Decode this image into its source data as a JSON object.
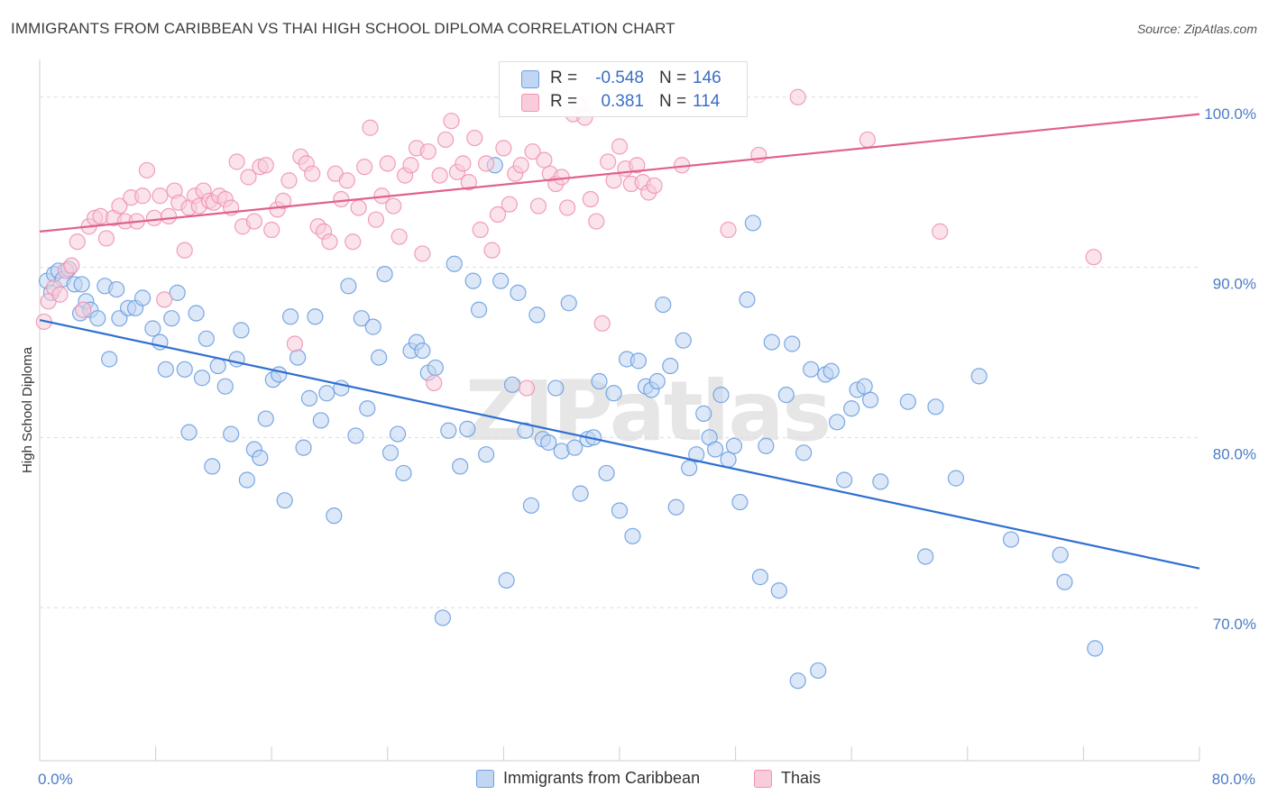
{
  "title": "IMMIGRANTS FROM CARIBBEAN VS THAI HIGH SCHOOL DIPLOMA CORRELATION CHART",
  "source": "Source: ZipAtlas.com",
  "watermark": "ZIPatlas",
  "colors": {
    "blue": "#6c9fe0",
    "blue_fill": "#c0d6f3",
    "blue_line": "#2f6fd0",
    "pink": "#ef93b1",
    "pink_fill": "#f8ccda",
    "pink_line": "#e06090",
    "tick_text": "#4a7cc7",
    "grid": "#dddddd"
  },
  "legend_top": [
    {
      "r_label": "R =",
      "r_value": "-0.548",
      "n_label": "N =",
      "n_value": "146",
      "color": "blue"
    },
    {
      "r_label": "R =",
      "r_value": "0.381",
      "n_label": "N =",
      "n_value": "114",
      "color": "pink"
    }
  ],
  "legend_bottom": [
    {
      "label": "Immigrants from Caribbean",
      "color": "blue"
    },
    {
      "label": "Thais",
      "color": "pink"
    }
  ],
  "chart_data": {
    "type": "scatter",
    "title": "IMMIGRANTS FROM CARIBBEAN VS THAI HIGH SCHOOL DIPLOMA CORRELATION CHART",
    "xlabel": "",
    "ylabel": "High School Diploma",
    "xlim": [
      0,
      80
    ],
    "ylim": [
      61,
      102
    ],
    "x_tick_labels": [
      "0.0%",
      "80.0%"
    ],
    "y_tick_values": [
      70,
      80,
      90,
      100
    ],
    "y_tick_labels": [
      "70.0%",
      "80.0%",
      "90.0%",
      "100.0%"
    ],
    "grid": true,
    "legend": "top-center",
    "series": [
      {
        "name": "Immigrants from Caribbean",
        "color": "blue",
        "trend": {
          "x": [
            0,
            80
          ],
          "y": [
            86.9,
            72.3
          ]
        },
        "points": [
          [
            0.5,
            89.2
          ],
          [
            0.8,
            88.5
          ],
          [
            1.0,
            89.6
          ],
          [
            1.3,
            89.8
          ],
          [
            1.6,
            89.3
          ],
          [
            2.0,
            89.9
          ],
          [
            2.4,
            89.0
          ],
          [
            2.8,
            87.3
          ],
          [
            3.2,
            88.0
          ],
          [
            3.5,
            87.5
          ],
          [
            4.0,
            87.0
          ],
          [
            4.5,
            88.9
          ],
          [
            5.3,
            88.7
          ],
          [
            2.9,
            89.0
          ],
          [
            4.8,
            84.6
          ],
          [
            5.5,
            87.0
          ],
          [
            6.1,
            87.6
          ],
          [
            6.6,
            87.6
          ],
          [
            7.1,
            88.2
          ],
          [
            7.8,
            86.4
          ],
          [
            8.3,
            85.6
          ],
          [
            8.7,
            84.0
          ],
          [
            9.1,
            87.0
          ],
          [
            9.5,
            88.5
          ],
          [
            10.0,
            84.0
          ],
          [
            10.3,
            80.3
          ],
          [
            10.8,
            87.3
          ],
          [
            11.2,
            83.5
          ],
          [
            11.5,
            85.8
          ],
          [
            11.9,
            78.3
          ],
          [
            12.3,
            84.2
          ],
          [
            12.8,
            83.0
          ],
          [
            13.2,
            80.2
          ],
          [
            13.6,
            84.6
          ],
          [
            13.9,
            86.3
          ],
          [
            14.3,
            77.5
          ],
          [
            14.8,
            79.3
          ],
          [
            15.2,
            78.8
          ],
          [
            15.6,
            81.1
          ],
          [
            16.1,
            83.4
          ],
          [
            16.5,
            83.7
          ],
          [
            16.9,
            76.3
          ],
          [
            17.3,
            87.1
          ],
          [
            17.8,
            84.7
          ],
          [
            18.2,
            79.4
          ],
          [
            18.6,
            82.3
          ],
          [
            19.0,
            87.1
          ],
          [
            19.4,
            81.0
          ],
          [
            19.8,
            82.6
          ],
          [
            20.3,
            75.4
          ],
          [
            20.8,
            82.9
          ],
          [
            21.3,
            88.9
          ],
          [
            21.8,
            80.1
          ],
          [
            22.2,
            87.0
          ],
          [
            22.6,
            81.7
          ],
          [
            23.0,
            86.5
          ],
          [
            23.4,
            84.7
          ],
          [
            23.8,
            89.6
          ],
          [
            24.2,
            79.1
          ],
          [
            24.7,
            80.2
          ],
          [
            25.1,
            77.9
          ],
          [
            25.6,
            85.1
          ],
          [
            26.0,
            85.6
          ],
          [
            26.4,
            85.1
          ],
          [
            26.8,
            83.8
          ],
          [
            27.3,
            84.1
          ],
          [
            27.8,
            69.4
          ],
          [
            28.2,
            80.4
          ],
          [
            28.6,
            90.2
          ],
          [
            29.0,
            78.3
          ],
          [
            29.5,
            80.5
          ],
          [
            29.9,
            89.2
          ],
          [
            30.3,
            87.5
          ],
          [
            30.8,
            79.0
          ],
          [
            31.4,
            96.0
          ],
          [
            31.8,
            89.2
          ],
          [
            32.2,
            71.6
          ],
          [
            32.6,
            83.1
          ],
          [
            33.0,
            88.5
          ],
          [
            33.5,
            80.4
          ],
          [
            33.9,
            76.0
          ],
          [
            34.3,
            87.2
          ],
          [
            34.7,
            79.9
          ],
          [
            35.1,
            79.7
          ],
          [
            35.6,
            82.9
          ],
          [
            36.0,
            79.2
          ],
          [
            36.5,
            87.9
          ],
          [
            36.9,
            79.4
          ],
          [
            37.3,
            76.7
          ],
          [
            37.8,
            79.9
          ],
          [
            38.2,
            80.0
          ],
          [
            38.6,
            83.3
          ],
          [
            39.1,
            77.9
          ],
          [
            39.6,
            82.6
          ],
          [
            40.0,
            75.7
          ],
          [
            40.5,
            84.6
          ],
          [
            40.9,
            74.2
          ],
          [
            41.3,
            84.5
          ],
          [
            41.8,
            83.0
          ],
          [
            42.2,
            82.8
          ],
          [
            42.6,
            83.3
          ],
          [
            43.0,
            87.8
          ],
          [
            43.5,
            84.2
          ],
          [
            43.9,
            75.9
          ],
          [
            44.4,
            85.7
          ],
          [
            44.8,
            78.2
          ],
          [
            45.3,
            79.0
          ],
          [
            45.8,
            81.4
          ],
          [
            46.2,
            80.0
          ],
          [
            46.6,
            79.3
          ],
          [
            47.0,
            82.5
          ],
          [
            47.5,
            78.7
          ],
          [
            47.9,
            79.5
          ],
          [
            48.3,
            76.2
          ],
          [
            48.8,
            88.1
          ],
          [
            49.2,
            92.6
          ],
          [
            49.7,
            71.8
          ],
          [
            50.1,
            79.5
          ],
          [
            50.5,
            85.6
          ],
          [
            51.0,
            71.0
          ],
          [
            51.5,
            82.5
          ],
          [
            51.9,
            85.5
          ],
          [
            52.3,
            65.7
          ],
          [
            52.7,
            79.1
          ],
          [
            53.2,
            84.0
          ],
          [
            53.7,
            66.3
          ],
          [
            54.2,
            83.7
          ],
          [
            54.6,
            83.9
          ],
          [
            55.0,
            80.9
          ],
          [
            55.5,
            77.5
          ],
          [
            56.0,
            81.7
          ],
          [
            56.4,
            82.8
          ],
          [
            56.9,
            83.0
          ],
          [
            57.3,
            82.2
          ],
          [
            58.0,
            77.4
          ],
          [
            59.9,
            82.1
          ],
          [
            61.1,
            73.0
          ],
          [
            61.8,
            81.8
          ],
          [
            63.2,
            77.6
          ],
          [
            64.8,
            83.6
          ],
          [
            67.0,
            74.0
          ],
          [
            70.4,
            73.1
          ],
          [
            70.7,
            71.5
          ],
          [
            72.8,
            67.6
          ]
        ]
      },
      {
        "name": "Thais",
        "color": "pink",
        "trend": {
          "x": [
            0,
            80
          ],
          "y": [
            92.1,
            99.0
          ]
        },
        "points": [
          [
            0.3,
            86.8
          ],
          [
            0.6,
            88.0
          ],
          [
            1.0,
            88.8
          ],
          [
            1.4,
            88.4
          ],
          [
            1.8,
            89.8
          ],
          [
            2.2,
            90.1
          ],
          [
            2.6,
            91.5
          ],
          [
            3.0,
            87.5
          ],
          [
            3.4,
            92.4
          ],
          [
            3.8,
            92.9
          ],
          [
            4.2,
            93.0
          ],
          [
            4.6,
            91.7
          ],
          [
            5.1,
            92.9
          ],
          [
            5.5,
            93.6
          ],
          [
            5.9,
            92.7
          ],
          [
            6.3,
            94.1
          ],
          [
            6.7,
            92.7
          ],
          [
            7.1,
            94.2
          ],
          [
            7.4,
            95.7
          ],
          [
            7.9,
            92.9
          ],
          [
            8.3,
            94.2
          ],
          [
            8.6,
            88.1
          ],
          [
            8.9,
            93.0
          ],
          [
            9.3,
            94.5
          ],
          [
            9.6,
            93.8
          ],
          [
            10.0,
            91.0
          ],
          [
            10.3,
            93.5
          ],
          [
            10.7,
            94.2
          ],
          [
            11.0,
            93.6
          ],
          [
            11.3,
            94.5
          ],
          [
            11.7,
            93.9
          ],
          [
            12.0,
            93.8
          ],
          [
            12.4,
            94.2
          ],
          [
            12.8,
            94.0
          ],
          [
            13.2,
            93.5
          ],
          [
            13.6,
            96.2
          ],
          [
            14.0,
            92.4
          ],
          [
            14.4,
            95.3
          ],
          [
            14.8,
            92.7
          ],
          [
            15.2,
            95.9
          ],
          [
            15.6,
            96.0
          ],
          [
            16.0,
            92.2
          ],
          [
            16.4,
            93.4
          ],
          [
            16.8,
            93.9
          ],
          [
            17.2,
            95.1
          ],
          [
            17.6,
            85.5
          ],
          [
            18.0,
            96.5
          ],
          [
            18.4,
            96.1
          ],
          [
            18.8,
            95.5
          ],
          [
            19.2,
            92.4
          ],
          [
            19.6,
            92.1
          ],
          [
            20.0,
            91.5
          ],
          [
            20.4,
            95.5
          ],
          [
            20.8,
            94.0
          ],
          [
            21.2,
            95.1
          ],
          [
            21.6,
            91.5
          ],
          [
            22.0,
            93.5
          ],
          [
            22.4,
            95.9
          ],
          [
            22.8,
            98.2
          ],
          [
            23.2,
            92.8
          ],
          [
            23.6,
            94.2
          ],
          [
            24.0,
            96.1
          ],
          [
            24.4,
            93.6
          ],
          [
            24.8,
            91.8
          ],
          [
            25.2,
            95.4
          ],
          [
            25.6,
            96.0
          ],
          [
            26.0,
            97.0
          ],
          [
            26.4,
            90.8
          ],
          [
            26.8,
            96.8
          ],
          [
            27.2,
            83.2
          ],
          [
            27.6,
            95.4
          ],
          [
            28.0,
            97.5
          ],
          [
            28.4,
            98.6
          ],
          [
            28.8,
            95.6
          ],
          [
            29.2,
            96.1
          ],
          [
            29.6,
            95.0
          ],
          [
            30.0,
            97.6
          ],
          [
            30.4,
            92.2
          ],
          [
            30.8,
            96.1
          ],
          [
            31.2,
            91.0
          ],
          [
            31.6,
            93.1
          ],
          [
            32.0,
            97.0
          ],
          [
            32.4,
            93.7
          ],
          [
            32.8,
            95.5
          ],
          [
            33.2,
            96.0
          ],
          [
            33.6,
            82.9
          ],
          [
            34.0,
            96.8
          ],
          [
            34.4,
            93.6
          ],
          [
            34.8,
            96.3
          ],
          [
            35.2,
            95.5
          ],
          [
            35.6,
            94.9
          ],
          [
            36.0,
            95.3
          ],
          [
            36.4,
            93.5
          ],
          [
            36.8,
            99.0
          ],
          [
            37.2,
            99.5
          ],
          [
            37.6,
            98.8
          ],
          [
            38.0,
            94.0
          ],
          [
            38.4,
            92.7
          ],
          [
            38.8,
            86.7
          ],
          [
            39.2,
            96.2
          ],
          [
            39.6,
            95.1
          ],
          [
            40.0,
            97.1
          ],
          [
            40.4,
            95.8
          ],
          [
            40.8,
            94.9
          ],
          [
            41.2,
            96.0
          ],
          [
            41.6,
            95.0
          ],
          [
            42.0,
            94.4
          ],
          [
            42.4,
            94.8
          ],
          [
            44.3,
            96.0
          ],
          [
            47.5,
            92.2
          ],
          [
            49.6,
            96.6
          ],
          [
            52.3,
            100.0
          ],
          [
            57.1,
            97.5
          ],
          [
            62.1,
            92.1
          ],
          [
            72.7,
            90.6
          ]
        ]
      }
    ]
  }
}
